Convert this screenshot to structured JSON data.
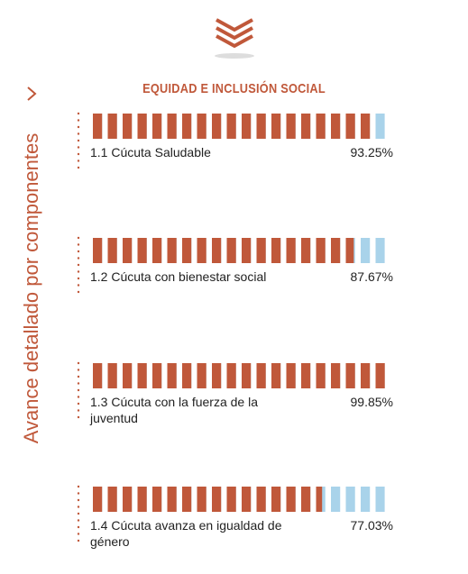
{
  "chart_data": {
    "type": "progress",
    "title": "EQUIDAD E INCLUSIÓN SOCIAL",
    "side_label": "Avance detallado por componentes",
    "categories": [
      "1.1 Cúcuta Saludable",
      "1.2 Cúcuta con bienestar social",
      "1.3 Cúcuta con la fuerza de la juventud",
      "1.4 Cúcuta avanza en igualdad de género"
    ],
    "values": [
      93.25,
      87.67,
      99.85,
      77.03
    ],
    "value_labels": [
      "93.25%",
      "87.67%",
      "99.85%",
      "77.03%"
    ],
    "xlim": [
      0,
      100
    ],
    "color": "#c0583a",
    "rest_color": "#a9d3ea"
  }
}
